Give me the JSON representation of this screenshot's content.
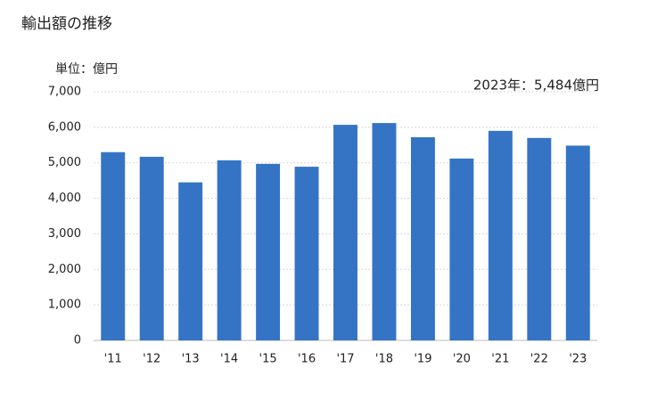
{
  "chart_data": {
    "type": "bar",
    "title": "輸出額の推移",
    "unit_label": "単位：億円",
    "annotation": "2023年：5,484億円",
    "categories": [
      "'11",
      "'12",
      "'13",
      "'14",
      "'15",
      "'16",
      "'17",
      "'18",
      "'19",
      "'20",
      "'21",
      "'22",
      "'23"
    ],
    "values": [
      5300,
      5170,
      4450,
      5070,
      4970,
      4890,
      6070,
      6120,
      5720,
      5120,
      5900,
      5700,
      5484
    ],
    "color": "#3574c4",
    "ylim": [
      0,
      7000
    ],
    "yticks": [
      0,
      {
        "value": 1000,
        "label": "1,000"
      },
      {
        "value": 2000,
        "label": "2,000"
      },
      {
        "value": 3000,
        "label": "3,000"
      },
      {
        "value": 4000,
        "label": "4,000"
      },
      {
        "value": 5000,
        "label": "5,000"
      },
      {
        "value": 6000,
        "label": "6,000"
      },
      {
        "value": 7000,
        "label": "7,000"
      }
    ],
    "grid": true
  }
}
